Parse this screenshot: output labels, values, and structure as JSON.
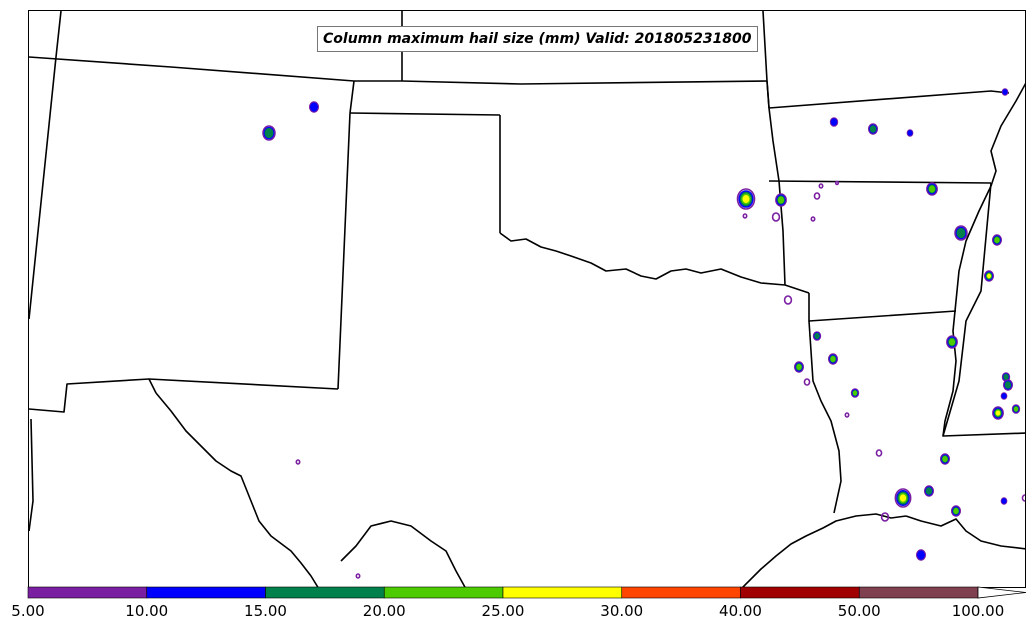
{
  "title": "Column maximum hail size (mm) Valid: 201805231800",
  "colorbar": {
    "labels": [
      "5.00",
      "10.00",
      "15.00",
      "20.00",
      "25.00",
      "30.00",
      "40.00",
      "50.00",
      "100.00"
    ],
    "colors": [
      "#7a1fa2",
      "#0000ff",
      "#00804a",
      "#4ccc00",
      "#ffff00",
      "#ff4500",
      "#a00000",
      "#7f4050"
    ],
    "extend_color": "#ffffff"
  },
  "colors": {
    "boundary": "#000000",
    "purple": "#7a1fa2",
    "blue": "#0000ff",
    "green": "#00804a",
    "light_green": "#4ccc00",
    "yellow": "#ffff00",
    "orange": "#ff4500",
    "red": "#c00000"
  }
}
